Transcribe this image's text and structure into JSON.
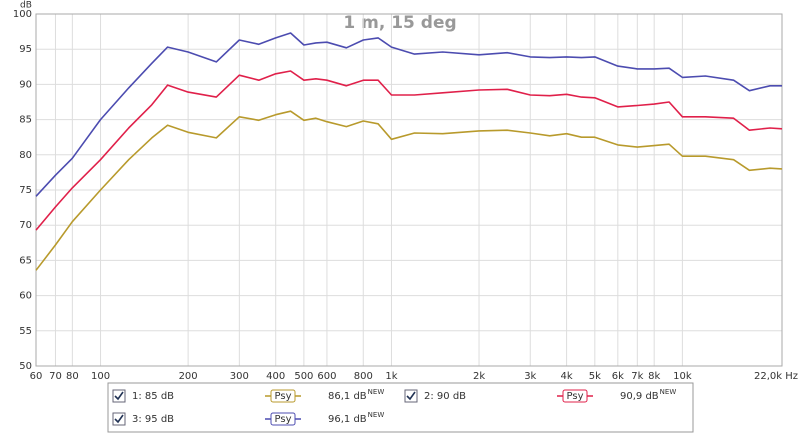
{
  "chart_data": {
    "type": "line",
    "title": "1 m, 15 deg",
    "y_label": "dB",
    "log_x": true,
    "grid": true,
    "xlim": [
      60,
      22000
    ],
    "ylim": [
      50,
      100
    ],
    "xticks": [
      60,
      70,
      80,
      100,
      200,
      300,
      400,
      500,
      600,
      800,
      {
        "value": 1000,
        "label": "1k"
      },
      {
        "value": 2000,
        "label": "2k"
      },
      {
        "value": 3000,
        "label": "3k"
      },
      {
        "value": 4000,
        "label": "4k"
      },
      {
        "value": 5000,
        "label": "5k"
      },
      {
        "value": 6000,
        "label": "6k"
      },
      {
        "value": 7000,
        "label": "7k"
      },
      {
        "value": 8000,
        "label": "8k"
      },
      {
        "value": 10000,
        "label": "10k"
      },
      {
        "value": 22000,
        "label": "22,0k Hz"
      }
    ],
    "yticks": [
      50,
      55,
      60,
      65,
      70,
      75,
      80,
      85,
      90,
      95,
      100
    ],
    "x": [
      60,
      70,
      80,
      100,
      125,
      150,
      170,
      200,
      250,
      300,
      350,
      400,
      450,
      500,
      550,
      600,
      700,
      800,
      900,
      1000,
      1200,
      1500,
      2000,
      2500,
      3000,
      3500,
      4000,
      4500,
      5000,
      6000,
      7000,
      8000,
      9000,
      10000,
      12000,
      15000,
      17000,
      20000,
      22000
    ],
    "series": [
      {
        "name": "1: 85 dB",
        "color": "#b89a2c",
        "smoothing": "Psy",
        "level": "86,1 dB",
        "level_tag": "NEW",
        "values": [
          63.6,
          67.2,
          70.5,
          75,
          79.3,
          82.4,
          84.2,
          83.2,
          82.4,
          85.4,
          84.9,
          85.7,
          86.2,
          84.9,
          85.2,
          84.7,
          84,
          84.8,
          84.4,
          82.2,
          83.1,
          83,
          83.4,
          83.5,
          83.1,
          82.7,
          83,
          82.5,
          82.5,
          81.4,
          81.1,
          81.3,
          81.5,
          79.8,
          79.8,
          79.3,
          77.8,
          78.1,
          78
        ]
      },
      {
        "name": "2: 90 dB",
        "color": "#e0204a",
        "smoothing": "Psy",
        "level": "90,9 dB",
        "level_tag": "NEW",
        "values": [
          69.3,
          72.6,
          75.3,
          79.3,
          83.8,
          87.1,
          89.9,
          88.9,
          88.2,
          91.3,
          90.6,
          91.5,
          91.9,
          90.6,
          90.8,
          90.6,
          89.8,
          90.6,
          90.6,
          88.5,
          88.5,
          88.8,
          89.2,
          89.3,
          88.5,
          88.4,
          88.6,
          88.2,
          88.1,
          86.8,
          87,
          87.2,
          87.5,
          85.4,
          85.4,
          85.2,
          83.5,
          83.8,
          83.7
        ]
      },
      {
        "name": "3: 95 dB",
        "color": "#4c4cb0",
        "smoothing": "Psy",
        "level": "96,1 dB",
        "level_tag": "NEW",
        "values": [
          74.1,
          77.1,
          79.5,
          85,
          89.5,
          93,
          95.3,
          94.6,
          93.2,
          96.3,
          95.7,
          96.6,
          97.3,
          95.6,
          95.9,
          96,
          95.2,
          96.3,
          96.6,
          95.3,
          94.3,
          94.6,
          94.2,
          94.5,
          93.9,
          93.8,
          93.9,
          93.8,
          93.9,
          92.6,
          92.2,
          92.2,
          92.3,
          91,
          91.2,
          90.6,
          89.1,
          89.8,
          89.8
        ]
      }
    ]
  }
}
